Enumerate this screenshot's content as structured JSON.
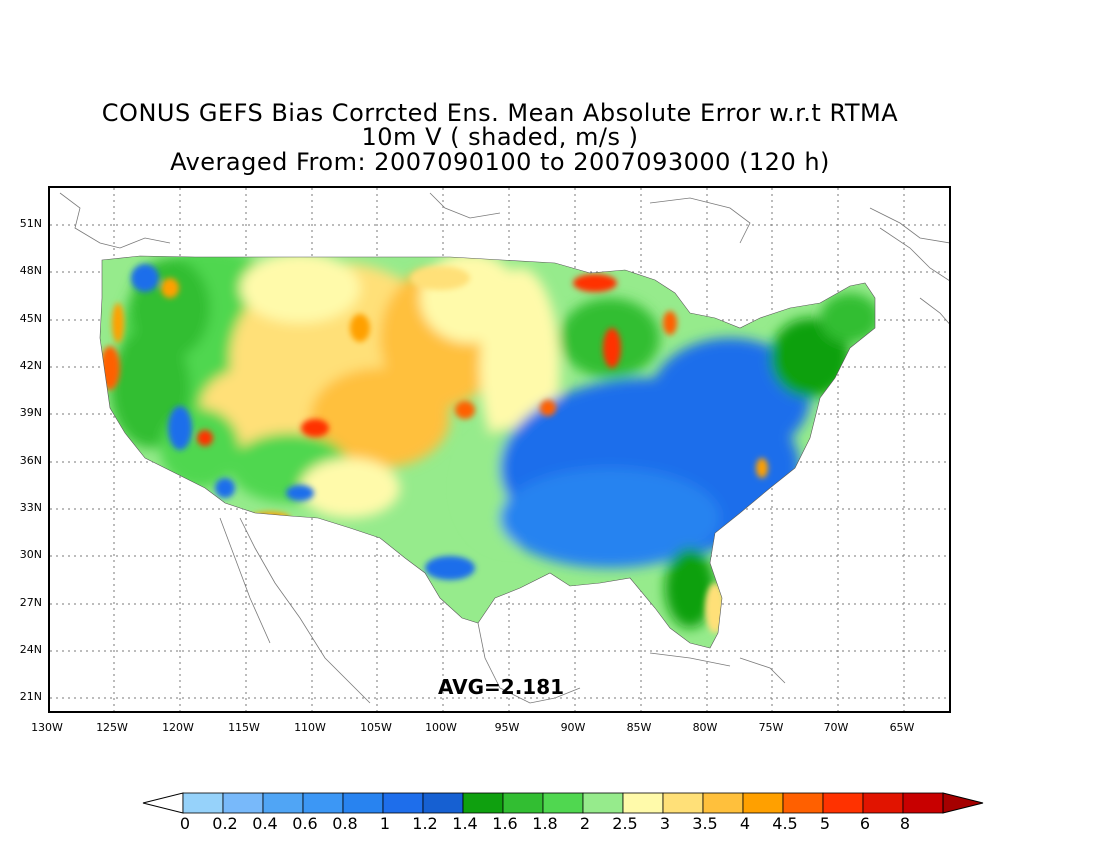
{
  "title": {
    "line1": "CONUS GEFS Bias Corrcted Ens. Mean Absolute Error w.r.t RTMA",
    "line2": "10m V ( shaded, m/s )",
    "line3": "Averaged From: 2007090100 to 2007093000 (120 h)"
  },
  "axes": {
    "lat_labels": [
      "51N",
      "48N",
      "45N",
      "42N",
      "39N",
      "36N",
      "33N",
      "30N",
      "27N",
      "24N",
      "21N"
    ],
    "lon_labels": [
      "130W",
      "125W",
      "120W",
      "115W",
      "110W",
      "105W",
      "100W",
      "95W",
      "90W",
      "85W",
      "80W",
      "75W",
      "70W",
      "65W"
    ],
    "lat_range": [
      19.5,
      53
    ],
    "lon_range": [
      -130,
      -64.3
    ]
  },
  "avg_label": "AVG=2.181",
  "colorbar": {
    "labels": [
      "0",
      "0.2",
      "0.4",
      "0.6",
      "0.8",
      "1",
      "1.2",
      "1.4",
      "1.6",
      "1.8",
      "2",
      "2.5",
      "3",
      "3.5",
      "4",
      "4.5",
      "5",
      "6",
      "8"
    ],
    "colors": [
      "#96d2fa",
      "#78b9fa",
      "#50a5f5",
      "#3c97f5",
      "#2883f0",
      "#1e6eeb",
      "#1660d2",
      "#0fa00f",
      "#32be32",
      "#50d750",
      "#96eb8c",
      "#fffaaa",
      "#ffe078",
      "#ffc03c",
      "#ffa000",
      "#ff6000",
      "#ff3200",
      "#e11400",
      "#c80000"
    ],
    "under_color": "#ffffff",
    "over_color": "#a50000"
  }
}
